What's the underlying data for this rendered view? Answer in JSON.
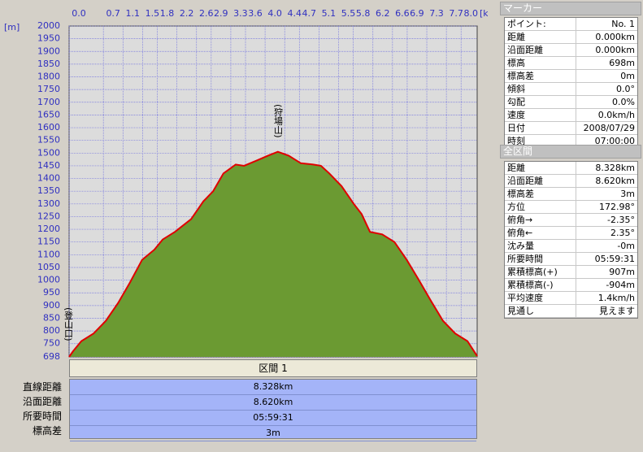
{
  "chart_data": {
    "type": "area",
    "xlabel": "[km]",
    "ylabel": "[m]",
    "annotations": [
      "(登山口)",
      "(狩場山)"
    ],
    "x": [
      0,
      0.08,
      0.25,
      0.5,
      0.75,
      1.0,
      1.24,
      1.49,
      1.74,
      1.91,
      2.16,
      2.49,
      2.74,
      2.94,
      3.15,
      3.4,
      3.57,
      3.82,
      4.06,
      4.26,
      4.48,
      4.73,
      4.98,
      5.14,
      5.31,
      5.56,
      5.81,
      5.97,
      6.14,
      6.39,
      6.64,
      6.89,
      7.14,
      7.38,
      7.63,
      7.88,
      8.13,
      8.328
    ],
    "series": [
      {
        "color": "#e00000",
        "fill": "#6b9a32",
        "values": [
          698,
          720,
          760,
          790,
          840,
          910,
          990,
          1080,
          1120,
          1160,
          1190,
          1240,
          1310,
          1350,
          1420,
          1455,
          1450,
          1470,
          1490,
          1505,
          1490,
          1460,
          1455,
          1450,
          1420,
          1370,
          1300,
          1260,
          1190,
          1180,
          1150,
          1080,
          1000,
          920,
          840,
          790,
          760,
          701
        ]
      }
    ],
    "xlim": [
      0,
      8.328
    ],
    "xticks": [
      {
        "value": 0,
        "label": "0.0"
      },
      0.7,
      1.1,
      1.5,
      1.8,
      2.2,
      2.6,
      2.9,
      3.3,
      3.6,
      {
        "value": 4,
        "label": "4.0"
      },
      4.4,
      4.7,
      5.1,
      5.5,
      5.8,
      6.2,
      6.6,
      6.9,
      7.3,
      7.7,
      {
        "value": 8,
        "label": "8.0"
      }
    ],
    "ylim": [
      698,
      2000
    ],
    "yticks": [
      698,
      750,
      800,
      850,
      900,
      950,
      1000,
      1050,
      1100,
      1150,
      1200,
      1250,
      1300,
      1350,
      1400,
      1450,
      1500,
      1550,
      1600,
      1650,
      1700,
      1750,
      1800,
      1850,
      1900,
      1950,
      2000
    ],
    "grid": true
  },
  "section": {
    "title": "区間 1",
    "rows": [
      [
        "直線距離",
        "8.328km"
      ],
      [
        "沿面距離",
        "8.620km"
      ],
      [
        "所要時間",
        "05:59:31"
      ],
      [
        "標高差",
        "3m"
      ]
    ]
  },
  "marker": {
    "title": "マーカー",
    "rows": [
      [
        "ポイント:",
        "No. 1"
      ],
      [
        "距離",
        "0.000km"
      ],
      [
        "沿面距離",
        "0.000km"
      ],
      [
        "標高",
        "698m"
      ],
      [
        "標高差",
        "0m"
      ],
      [
        "傾斜",
        "0.0°"
      ],
      [
        "勾配",
        "0.0%"
      ],
      [
        "速度",
        "0.0km/h"
      ],
      [
        "日付",
        "2008/07/29"
      ],
      [
        "時刻",
        "07:00:00"
      ]
    ]
  },
  "total": {
    "title": "全区間",
    "rows": [
      [
        "距離",
        "8.328km"
      ],
      [
        "沿面距離",
        "8.620km"
      ],
      [
        "標高差",
        "3m"
      ],
      [
        "方位",
        "172.98°"
      ],
      [
        "俯角→",
        "-2.35°"
      ],
      [
        "俯角←",
        "2.35°"
      ],
      [
        "沈み量",
        "-0m"
      ],
      [
        "所要時間",
        "05:59:31"
      ],
      [
        "累積標高(+)",
        "907m"
      ],
      [
        "累積標高(-)",
        "-904m"
      ],
      [
        "平均速度",
        "1.4km/h"
      ],
      [
        "見通し",
        "見えます"
      ]
    ]
  }
}
